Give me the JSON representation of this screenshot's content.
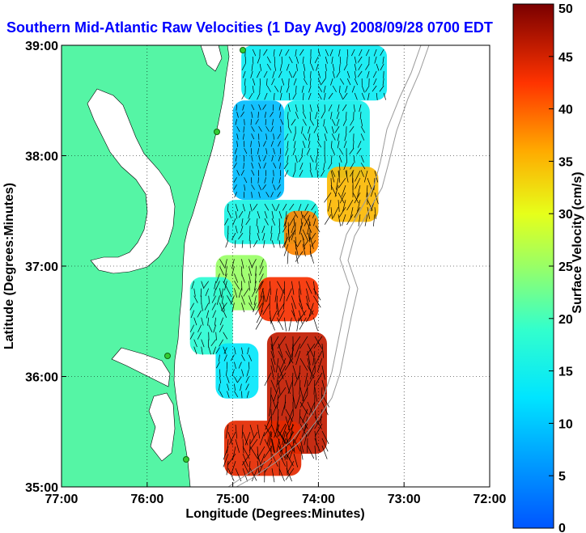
{
  "chart_data": {
    "type": "heatmap",
    "title": "Southern Mid-Atlantic Raw Velocities (1 Day Avg) 2008/09/28 0700 EDT",
    "xlabel": "Longitude (Degrees:Minutes)",
    "ylabel": "Latitude (Degrees:Minutes)",
    "x_tick_labels": [
      "77:00",
      "76:00",
      "75:00",
      "74:00",
      "73:00",
      "72:00"
    ],
    "y_tick_labels": [
      "35:00",
      "36:00",
      "37:00",
      "38:00",
      "39:00"
    ],
    "x_ticks": [
      -77,
      -76,
      -75,
      -74,
      -73,
      -72
    ],
    "y_ticks": [
      35,
      36,
      37,
      38,
      39
    ],
    "xlim": [
      -77,
      -72
    ],
    "ylim": [
      35,
      39
    ],
    "grid": true,
    "colorbar": {
      "label": "Surface Velocity (cm/s)",
      "range": [
        0,
        50
      ],
      "tick_labels": [
        "0",
        "5",
        "10",
        "15",
        "20",
        "25",
        "30",
        "35",
        "40",
        "45",
        "50"
      ],
      "tick_values": [
        0,
        5,
        10,
        15,
        20,
        25,
        30,
        35,
        40,
        45,
        50
      ]
    },
    "land_color": "#55f5a5",
    "water_color": "#ffffff",
    "vector_color": "#000000",
    "colormap": "jet",
    "field_regions": [
      {
        "lon_range": [
          -74.9,
          -73.2
        ],
        "lat_range": [
          38.5,
          39.0
        ],
        "speed": 14
      },
      {
        "lon_range": [
          -75.0,
          -74.4
        ],
        "lat_range": [
          37.6,
          38.5
        ],
        "speed": 9
      },
      {
        "lon_range": [
          -74.4,
          -73.4
        ],
        "lat_range": [
          37.8,
          38.5
        ],
        "speed": 15
      },
      {
        "lon_range": [
          -73.9,
          -73.3
        ],
        "lat_range": [
          37.4,
          37.9
        ],
        "speed": 35
      },
      {
        "lon_range": [
          -75.1,
          -74.0
        ],
        "lat_range": [
          37.2,
          37.6
        ],
        "speed": 16
      },
      {
        "lon_range": [
          -74.4,
          -74.0
        ],
        "lat_range": [
          37.1,
          37.5
        ],
        "speed": 38
      },
      {
        "lon_range": [
          -75.2,
          -74.6
        ],
        "lat_range": [
          36.6,
          37.1
        ],
        "speed": 25
      },
      {
        "lon_range": [
          -74.7,
          -74.0
        ],
        "lat_range": [
          36.5,
          36.9
        ],
        "speed": 43
      },
      {
        "lon_range": [
          -75.5,
          -75.0
        ],
        "lat_range": [
          36.2,
          36.9
        ],
        "speed": 18
      },
      {
        "lon_range": [
          -75.2,
          -74.7
        ],
        "lat_range": [
          35.8,
          36.3
        ],
        "speed": 13
      },
      {
        "lon_range": [
          -74.6,
          -73.9
        ],
        "lat_range": [
          35.3,
          36.4
        ],
        "speed": 46
      },
      {
        "lon_range": [
          -75.1,
          -74.2
        ],
        "lat_range": [
          35.1,
          35.6
        ],
        "speed": 44
      }
    ]
  }
}
